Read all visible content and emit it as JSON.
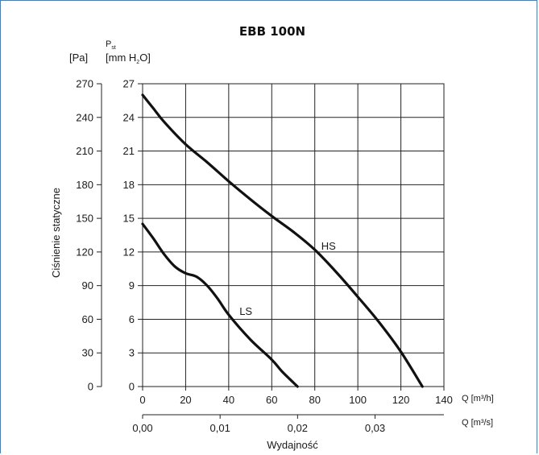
{
  "chart_data": {
    "type": "line",
    "title": "EBB 100N",
    "ylabel": "Ciśnienie statyczne",
    "xlabel": "Wydajność",
    "y_unit_pa": "[Pa]",
    "y_unit_mm_prefix": "[mm H",
    "y_unit_mm_sub": "2",
    "y_unit_mm_suffix": "O]",
    "y_pst_main": "P",
    "y_pst_sub": "st",
    "x_unit_m3h": "Q [m³/h]",
    "x_unit_m3s": "Q [m³/s]",
    "xlim": [
      0,
      140
    ],
    "ylim_pa": [
      0,
      270
    ],
    "ylim_mm": [
      0,
      27
    ],
    "x_ticks": [
      "0",
      "20",
      "40",
      "60",
      "80",
      "100",
      "120",
      "140"
    ],
    "x_ticks_m3s": [
      "0,00",
      "0,01",
      "0,02",
      "0,03"
    ],
    "x_ticks_m3s_positions_m3h": [
      0,
      36,
      72,
      108
    ],
    "y_ticks_pa": [
      "0",
      "30",
      "60",
      "90",
      "120",
      "150",
      "180",
      "210",
      "240",
      "270"
    ],
    "y_ticks_mm": [
      "0",
      "3",
      "6",
      "9",
      "12",
      "15",
      "18",
      "21",
      "24",
      "27"
    ],
    "grid": true,
    "series": [
      {
        "name": "HS",
        "x": [
          0,
          5,
          10,
          20,
          30,
          40,
          50,
          60,
          70,
          80,
          90,
          100,
          110,
          120,
          130
        ],
        "y": [
          260,
          248,
          236,
          216,
          200,
          183,
          167,
          152,
          138,
          122,
          102,
          80,
          57,
          31,
          0
        ]
      },
      {
        "name": "LS",
        "x": [
          0,
          5,
          10,
          15,
          20,
          25,
          30,
          35,
          40,
          50,
          60,
          65,
          72
        ],
        "y": [
          145,
          132,
          118,
          107,
          101,
          98,
          90,
          78,
          64,
          42,
          24,
          13,
          0
        ]
      }
    ],
    "series_label_pos": [
      [
        83,
        122
      ],
      [
        45,
        64
      ]
    ]
  }
}
